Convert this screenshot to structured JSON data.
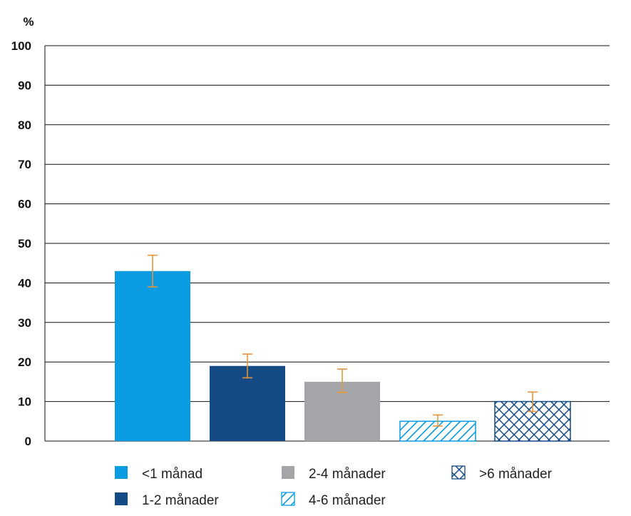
{
  "chart_data": {
    "type": "bar",
    "ylabel": "%",
    "ylim": [
      0,
      100
    ],
    "yticks": [
      "0",
      "10",
      "20",
      "30",
      "40",
      "50",
      "60",
      "70",
      "80",
      "90",
      "100"
    ],
    "grid": true,
    "legend_position": "bottom",
    "categories": [
      "<1 månad",
      "1-2 månader",
      "2-4 månader",
      "4-6 månader",
      ">6 månader"
    ],
    "values": [
      43,
      19,
      15,
      5,
      10
    ],
    "error_low": [
      39,
      16,
      12.3,
      3.8,
      7.5
    ],
    "error_high": [
      47,
      22,
      18.2,
      6.6,
      12.4
    ],
    "series_styles": [
      {
        "fill": "solid",
        "color": "#0a9be0"
      },
      {
        "fill": "solid",
        "color": "#144a86"
      },
      {
        "fill": "solid",
        "color": "#a3a5a8"
      },
      {
        "fill": "diagonal-hatch",
        "color": "#0a9be0"
      },
      {
        "fill": "cross-hatch",
        "color": "#144a86"
      }
    ],
    "error_bar_color": "#e8953a",
    "legend_order": [
      0,
      2,
      4,
      1,
      3
    ]
  }
}
